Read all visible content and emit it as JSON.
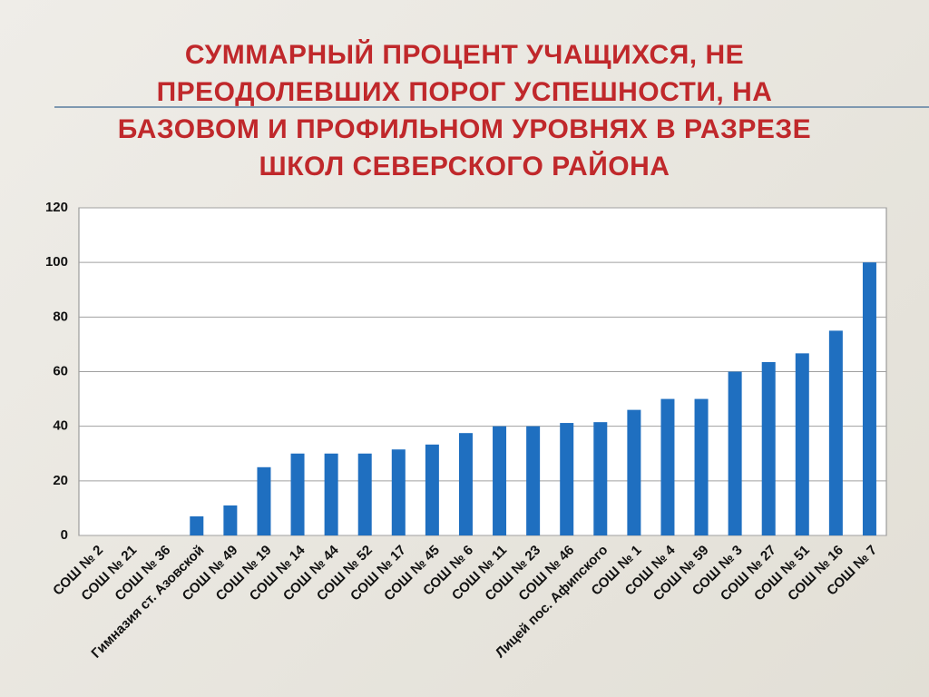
{
  "chart_data": {
    "type": "bar",
    "title": "СУММАРНЫЙ ПРОЦЕНТ УЧАЩИХСЯ, НЕ ПРЕОДОЛЕВШИХ ПОРОГ УСПЕШНОСТИ, НА БАЗОВОМ И ПРОФИЛЬНОМ УРОВНЯХ В РАЗРЕЗЕ ШКОЛ СЕВЕРСКОГО РАЙОНА",
    "categories": [
      "СОШ № 2",
      "СОШ № 21",
      "СОШ № 36",
      "Гимназия ст. Азовской",
      "СОШ № 49",
      "СОШ № 19",
      "СОШ № 14",
      "СОШ № 44",
      "СОШ № 52",
      "СОШ № 17",
      "СОШ № 45",
      "СОШ № 6",
      "СОШ № 11",
      "СОШ № 23",
      "СОШ № 46",
      "Лицей пос. Афипского",
      "СОШ № 1",
      "СОШ № 4",
      "СОШ № 59",
      "СОШ № 3",
      "СОШ № 27",
      "СОШ № 51",
      "СОШ № 16",
      "СОШ № 7"
    ],
    "values": [
      0,
      0,
      0,
      7,
      11,
      25,
      30,
      30,
      30,
      31.5,
      33.3,
      37.5,
      40,
      40,
      41.2,
      41.5,
      46,
      50,
      50,
      60,
      63.5,
      66.7,
      75,
      100
    ],
    "color": "#1f6fc0",
    "ylim": [
      0,
      120
    ],
    "yticks": [
      0,
      20,
      40,
      60,
      80,
      100,
      120
    ],
    "grid": true
  }
}
